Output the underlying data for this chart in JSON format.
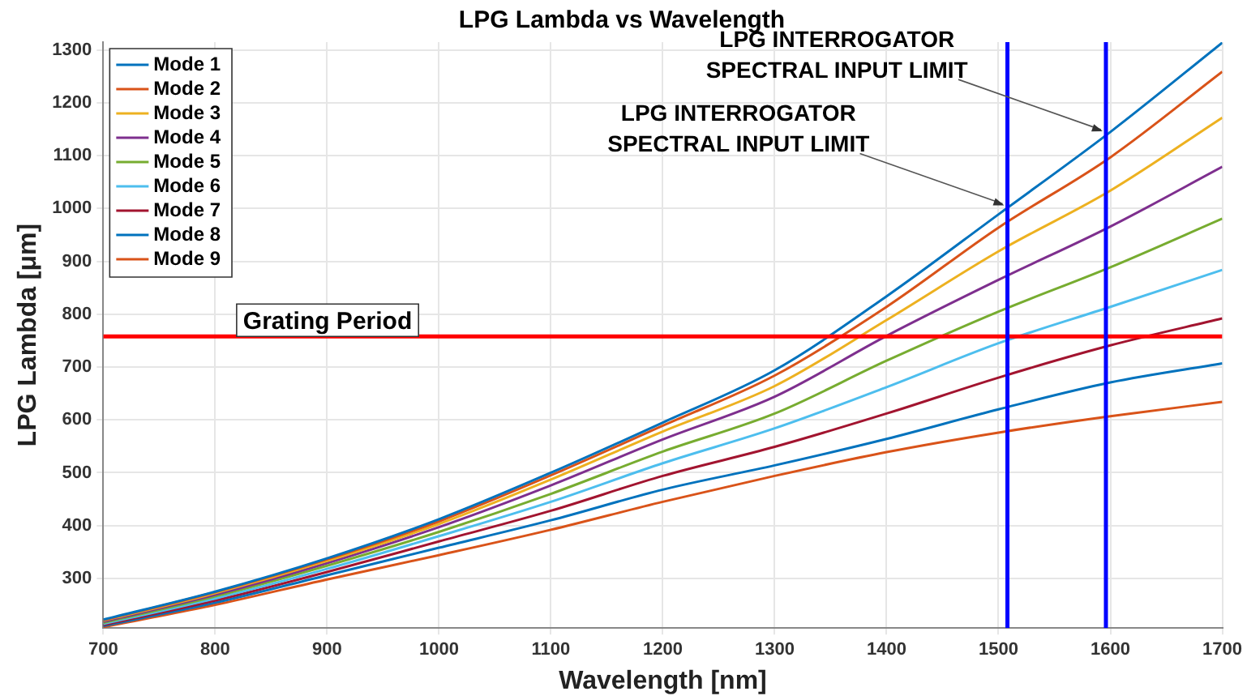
{
  "chart_data": {
    "type": "line",
    "title": "LPG Lambda vs Wavelength",
    "xlabel": "Wavelength [nm]",
    "ylabel": "LPG Lambda [μm]",
    "x": [
      700,
      800,
      900,
      1000,
      1100,
      1200,
      1300,
      1400,
      1500,
      1600,
      1700
    ],
    "series": [
      {
        "name": "Mode 1",
        "color": "#0072bd",
        "values": [
          222,
          275,
          338,
          412,
          500,
          595,
          694,
          834,
          989,
          1145,
          1314
        ]
      },
      {
        "name": "Mode 2",
        "color": "#d95319",
        "values": [
          221,
          274,
          336,
          408,
          495,
          589,
          684,
          814,
          964,
          1097,
          1259
        ]
      },
      {
        "name": "Mode 3",
        "color": "#edb120",
        "values": [
          220,
          272,
          333,
          403,
          487,
          578,
          664,
          789,
          919,
          1034,
          1172
        ]
      },
      {
        "name": "Mode 4",
        "color": "#7e2f8e",
        "values": [
          218,
          269,
          329,
          397,
          476,
          563,
          644,
          759,
          865,
          966,
          1079
        ]
      },
      {
        "name": "Mode 5",
        "color": "#77ac30",
        "values": [
          216,
          266,
          324,
          388,
          460,
          540,
          612,
          712,
          805,
          889,
          981
        ]
      },
      {
        "name": "Mode 6",
        "color": "#4dbeee",
        "values": [
          214,
          262,
          318,
          380,
          445,
          518,
          584,
          662,
          745,
          814,
          884
        ]
      },
      {
        "name": "Mode 7",
        "color": "#a2142f",
        "values": [
          212,
          258,
          312,
          370,
          428,
          494,
          549,
          612,
          680,
          741,
          792
        ]
      },
      {
        "name": "Mode 8",
        "color": "#0072bd",
        "values": [
          210,
          254,
          306,
          358,
          410,
          468,
          514,
          564,
          620,
          671,
          707
        ]
      },
      {
        "name": "Mode 9",
        "color": "#d95319",
        "values": [
          208,
          250,
          298,
          344,
          392,
          445,
          494,
          539,
          576,
          607,
          634
        ]
      }
    ],
    "xlim": [
      700,
      1700
    ],
    "ylim": [
      206,
      1315
    ],
    "xticks": [
      700,
      800,
      900,
      1000,
      1100,
      1200,
      1300,
      1400,
      1500,
      1600,
      1700
    ],
    "yticks": [
      300,
      400,
      500,
      600,
      700,
      800,
      900,
      1000,
      1100,
      1200,
      1300
    ],
    "ref_lines": [
      {
        "axis": "y",
        "value": 758,
        "label": "Grating Period",
        "color": "#ff0000"
      },
      {
        "axis": "x",
        "value": 1508,
        "label": null,
        "color": "#0000ff"
      },
      {
        "axis": "x",
        "value": 1596,
        "label": null,
        "color": "#0000ff"
      }
    ],
    "annotations": [
      {
        "text": "LPG INTERROGATOR\nSPECTRAL INPUT LIMIT",
        "x": 1508,
        "y": 1000
      },
      {
        "text": "LPG INTERROGATOR\nSPECTRAL INPUT LIMIT",
        "x": 1596,
        "y": 1140
      }
    ],
    "grid": true,
    "legend": "top left",
    "marker": "none",
    "line_style": "solid"
  }
}
